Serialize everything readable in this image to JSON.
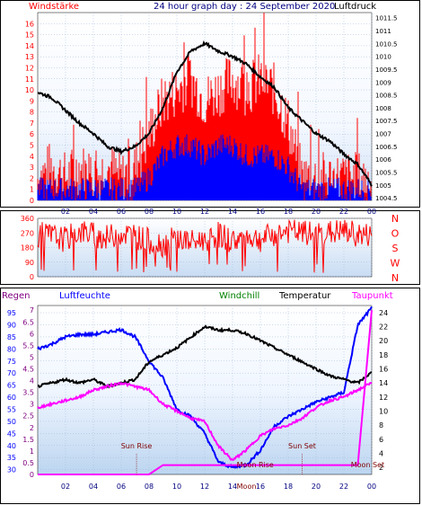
{
  "header": {
    "left_label": "Windstärke",
    "title": "24 hour graph day : 24 September 2020",
    "right_label": "Luftdruck"
  },
  "colors": {
    "red": "#ff0000",
    "blue": "#0000ff",
    "black": "#000000",
    "magenta": "#ff00ff",
    "green": "#008000",
    "purple": "#800080",
    "navy": "#000080"
  },
  "chart_data": [
    {
      "type": "bar",
      "panel": "wind_pressure",
      "title": "24 hour graph day : 24 September 2020",
      "x_ticks": [
        "02",
        "04",
        "06",
        "08",
        "10",
        "12",
        "14",
        "16",
        "18",
        "20",
        "22",
        "00"
      ],
      "xlim": [
        0,
        24
      ],
      "left_axis": {
        "label": "Windstärke",
        "ticks": [
          "0",
          "1",
          "2",
          "3",
          "4",
          "5",
          "6",
          "7",
          "8",
          "9",
          "10",
          "11",
          "12",
          "13",
          "14",
          "15",
          "16"
        ],
        "ylim": [
          0,
          17
        ]
      },
      "right_axis": {
        "label": "Luftdruck",
        "ticks": [
          "1004.5",
          "1005",
          "1005.5",
          "1006",
          "1006.5",
          "1007",
          "1007.5",
          "1008",
          "1008.5",
          "1009",
          "1009.5",
          "1010",
          "1010.5",
          "1011",
          "1011.5"
        ],
        "ylim": [
          1004.4,
          1011.7
        ]
      },
      "series": [
        {
          "name": "Luftdruck",
          "color": "black",
          "x": [
            0,
            1,
            2,
            3,
            4,
            5,
            6,
            7,
            8,
            9,
            10,
            11,
            12,
            13,
            14,
            15,
            16,
            17,
            18,
            19,
            20,
            21,
            22,
            23,
            24
          ],
          "values": [
            1008.6,
            1008.4,
            1007.9,
            1007.4,
            1007.0,
            1006.5,
            1006.3,
            1006.5,
            1007.0,
            1008.0,
            1009.4,
            1010.2,
            1010.5,
            1010.2,
            1010.0,
            1009.7,
            1009.2,
            1008.8,
            1008.0,
            1007.5,
            1007.0,
            1006.7,
            1006.2,
            1005.8,
            1005.0
          ]
        },
        {
          "color": "red",
          "x": [
            0,
            1,
            2,
            3,
            4,
            5,
            6,
            7,
            8,
            9,
            10,
            11,
            12,
            13,
            14,
            15,
            16,
            17,
            18,
            19,
            20,
            21,
            22,
            23,
            24
          ],
          "values": [
            2,
            3,
            2,
            3,
            2,
            3,
            2,
            3,
            6,
            9,
            10,
            11,
            9,
            10,
            11,
            10,
            11,
            10,
            7,
            2,
            2,
            2,
            2,
            2,
            2
          ]
        },
        {
          "color": "blue",
          "x": [
            0,
            1,
            2,
            3,
            4,
            5,
            6,
            7,
            8,
            9,
            10,
            11,
            12,
            13,
            14,
            15,
            16,
            17,
            18,
            19,
            20,
            21,
            22,
            23,
            24
          ],
          "values": [
            1,
            1,
            1,
            1,
            1,
            1,
            1,
            1,
            2,
            4,
            5,
            5,
            4,
            5,
            5,
            4,
            4,
            4,
            3,
            1,
            1,
            1,
            1,
            1,
            1
          ]
        }
      ]
    },
    {
      "type": "line",
      "panel": "wind_direction",
      "x_ticks": [
        "02",
        "04",
        "06",
        "08",
        "10",
        "12",
        "14",
        "16",
        "18",
        "20",
        "22",
        "00"
      ],
      "left_axis": {
        "ticks": [
          "0",
          "90",
          "180",
          "270",
          "360"
        ],
        "ylim": [
          0,
          360
        ]
      },
      "right_axis": {
        "ticks": [
          "N",
          "W",
          "S",
          "O",
          "N"
        ]
      },
      "series": [
        {
          "color": "red",
          "x": [
            0,
            1,
            2,
            3,
            4,
            5,
            6,
            7,
            8,
            9,
            10,
            11,
            12,
            13,
            14,
            15,
            16,
            17,
            18,
            19,
            20,
            21,
            22,
            23,
            24
          ],
          "values": [
            260,
            250,
            230,
            280,
            260,
            240,
            270,
            250,
            220,
            200,
            240,
            210,
            230,
            260,
            220,
            250,
            230,
            260,
            280,
            270,
            260,
            270,
            280,
            260,
            250
          ]
        }
      ]
    },
    {
      "type": "line",
      "panel": "rain_humidity_temperature",
      "x_ticks": [
        "02",
        "04",
        "06",
        "08",
        "10",
        "12",
        "14",
        "16",
        "18",
        "20",
        "22",
        "00"
      ],
      "left_axis_regen": {
        "label": "Regen",
        "ticks": [
          "0",
          "0.5",
          "1",
          "1.5",
          "2",
          "2.5",
          "3",
          "3.5",
          "4",
          "4.5",
          "5",
          "5.5",
          "6",
          "6.5",
          "7"
        ],
        "ylim": [
          0,
          7.2
        ]
      },
      "left_axis_luftfeuchte": {
        "label": "Luftfeuchte",
        "ticks": [
          "30",
          "35",
          "40",
          "45",
          "50",
          "55",
          "60",
          "65",
          "70",
          "75",
          "80",
          "85",
          "90",
          "95"
        ],
        "ylim": [
          28,
          98
        ]
      },
      "right_axis": {
        "label": "Temperatur",
        "ticks": [
          "2",
          "4",
          "6",
          "8",
          "10",
          "12",
          "14",
          "16",
          "18",
          "20",
          "22",
          "24"
        ],
        "ylim": [
          1,
          25
        ]
      },
      "legend": [
        "Windchill",
        "Temperatur",
        "Taupunkt"
      ],
      "annotations": [
        "Sun Rise",
        "Sun Set",
        "Moon Rise",
        "Moon Set",
        "Moon"
      ],
      "series": [
        {
          "name": "Luftfeuchte",
          "color": "blue",
          "x": [
            0,
            1,
            2,
            3,
            4,
            5,
            6,
            7,
            8,
            9,
            10,
            11,
            12,
            13,
            14,
            15,
            16,
            17,
            18,
            19,
            20,
            21,
            22,
            23,
            24
          ],
          "values": [
            80,
            82,
            85,
            86,
            86,
            87,
            88,
            85,
            75,
            68,
            55,
            52,
            45,
            33,
            31,
            32,
            38,
            48,
            52,
            55,
            58,
            60,
            62,
            90,
            97
          ]
        },
        {
          "name": "Temperatur",
          "color": "black",
          "x": [
            0,
            1,
            2,
            3,
            4,
            5,
            6,
            7,
            8,
            9,
            10,
            11,
            12,
            13,
            14,
            15,
            16,
            17,
            18,
            19,
            20,
            21,
            22,
            23,
            24
          ],
          "values": [
            13.5,
            14.0,
            14.5,
            14.0,
            14.5,
            13.5,
            14.0,
            14.5,
            17.0,
            18.0,
            19.0,
            20.5,
            22.0,
            21.5,
            21.5,
            21.0,
            20.0,
            19.0,
            18.0,
            17.0,
            16.0,
            15.0,
            14.5,
            14.0,
            15.5
          ]
        },
        {
          "name": "Taupunkt",
          "color": "magenta",
          "x": [
            0,
            1,
            2,
            3,
            4,
            5,
            6,
            7,
            8,
            9,
            10,
            11,
            12,
            13,
            14,
            15,
            16,
            17,
            18,
            19,
            20,
            21,
            22,
            23,
            24
          ],
          "values": [
            10.5,
            11.0,
            11.5,
            12.0,
            13.0,
            13.5,
            14.0,
            13.5,
            13.0,
            11.0,
            10.0,
            9.0,
            8.5,
            5.0,
            3.0,
            4.5,
            6.5,
            7.5,
            8.0,
            9.0,
            10.5,
            11.5,
            12.0,
            13.0,
            14.0
          ]
        },
        {
          "name": "Regen",
          "color": "magenta",
          "x": [
            0,
            4,
            6,
            8,
            9,
            12,
            14,
            16,
            18,
            20,
            22,
            22.5,
            23,
            24
          ],
          "values": [
            0,
            0,
            0,
            0,
            0.4,
            0.4,
            0.4,
            0.4,
            0.4,
            0.4,
            0.4,
            0.4,
            0.4,
            7.0
          ]
        }
      ]
    }
  ]
}
